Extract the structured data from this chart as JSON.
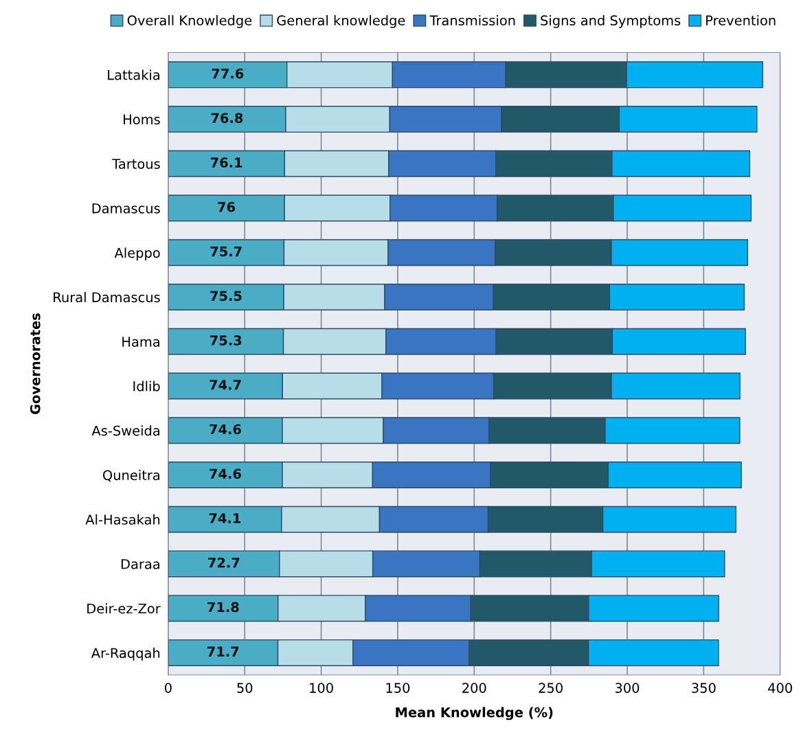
{
  "chart_data": {
    "type": "bar",
    "orientation": "horizontal",
    "stacked": true,
    "xlabel": "Mean Knowledge (%)",
    "ylabel": "Governorates",
    "categories": [
      "Lattakia",
      "Homs",
      "Tartous",
      "Damascus",
      "Aleppo",
      "Rural Damascus",
      "Hama",
      "Idlib",
      "As-Sweida",
      "Quneitra",
      "Al-Hasakah",
      "Daraa",
      "Deir-ez-Zor",
      "Ar-Raqqah"
    ],
    "series": [
      {
        "name": "Overall Knowledge",
        "color": "#4bacc6",
        "values": [
          77.6,
          76.8,
          76.1,
          76,
          75.7,
          75.5,
          75.3,
          74.7,
          74.6,
          74.6,
          74.1,
          72.7,
          71.8,
          71.7
        ],
        "value_labels": [
          "77.6",
          "76.8",
          "76.1",
          "76",
          "75.7",
          "75.5",
          "75.3",
          "74.7",
          "74.6",
          "74.6",
          "74.1",
          "72.7",
          "71.8",
          "71.7"
        ]
      },
      {
        "name": "General knowledge",
        "color": "#b7dee8",
        "values": [
          69,
          68,
          68,
          69,
          68,
          66,
          67,
          65,
          66,
          59,
          64,
          61,
          57,
          49
        ]
      },
      {
        "name": "Transmission",
        "color": "#3a75c4",
        "values": [
          74,
          73,
          70,
          70,
          70,
          71,
          72,
          73,
          69,
          77,
          71,
          70,
          69,
          76
        ]
      },
      {
        "name": "Signs and Symptoms",
        "color": "#215968",
        "values": [
          79,
          77,
          76,
          76,
          76,
          76,
          76,
          77,
          76,
          77,
          75,
          73,
          77,
          78
        ]
      },
      {
        "name": "Prevention",
        "color": "#00b0f0",
        "values": [
          89,
          90,
          90,
          90,
          89,
          88,
          87,
          84,
          88,
          87,
          87,
          87,
          85,
          85
        ]
      }
    ],
    "xlim": [
      0,
      400
    ],
    "xticks": [
      0,
      50,
      100,
      150,
      200,
      250,
      300,
      350,
      400
    ],
    "grid": "x",
    "legend": "top"
  }
}
